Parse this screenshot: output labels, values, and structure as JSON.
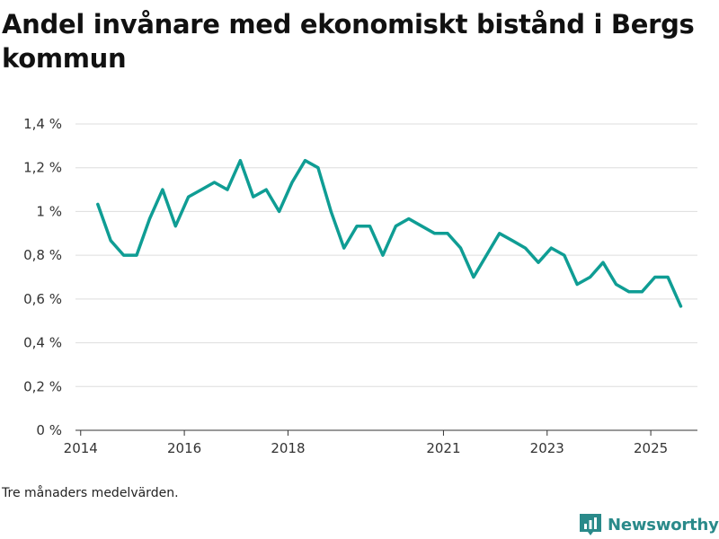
{
  "chart_data": {
    "type": "line",
    "title": "Andel invånare med ekonomiskt bistånd i Bergs kommun",
    "xlabel": "",
    "ylabel": "",
    "ylim": [
      0,
      1.4
    ],
    "yticks": [
      0,
      0.2,
      0.4,
      0.6,
      0.8,
      1,
      1.2,
      1.4
    ],
    "ytick_labels": [
      "0 %",
      "0,2 %",
      "0,4 %",
      "0,6 %",
      "0,8 %",
      "1 %",
      "1,2 %",
      "1,4 %"
    ],
    "xlim": [
      2013.9,
      2025.9
    ],
    "xticks": [
      2014,
      2016,
      2018,
      2021,
      2023,
      2025
    ],
    "xtick_labels": [
      "2014",
      "2016",
      "2018",
      "2021",
      "2023",
      "2025"
    ],
    "line_color": "#0f9d94",
    "series": [
      {
        "name": "Andel invånare med ekonomiskt bistånd",
        "x": [
          2014.33,
          2014.58,
          2014.83,
          2015.08,
          2015.33,
          2015.58,
          2015.83,
          2016.08,
          2016.33,
          2016.58,
          2016.83,
          2017.08,
          2017.33,
          2017.58,
          2017.83,
          2018.08,
          2018.33,
          2018.58,
          2018.83,
          2019.08,
          2019.33,
          2019.58,
          2019.83,
          2020.08,
          2020.33,
          2020.58,
          2020.83,
          2021.08,
          2021.33,
          2021.58,
          2021.83,
          2022.08,
          2022.33,
          2022.58,
          2022.83,
          2023.08,
          2023.33,
          2023.58,
          2023.83,
          2024.08,
          2024.33,
          2024.58,
          2024.83,
          2025.08,
          2025.33,
          2025.58
        ],
        "values": [
          1.033,
          0.867,
          0.8,
          0.8,
          0.967,
          1.1,
          0.933,
          1.067,
          1.1,
          1.133,
          1.1,
          1.233,
          1.067,
          1.1,
          1.0,
          1.133,
          1.233,
          1.2,
          1.0,
          0.833,
          0.933,
          0.933,
          0.8,
          0.933,
          0.967,
          0.933,
          0.9,
          0.9,
          0.833,
          0.7,
          0.8,
          0.9,
          0.867,
          0.833,
          0.767,
          0.833,
          0.8,
          0.667,
          0.7,
          0.767,
          0.667,
          0.633,
          0.633,
          0.7,
          0.7,
          0.567
        ]
      }
    ]
  },
  "footnote": "Tre månaders medelvärden.",
  "brand": {
    "name": "Newsworthy",
    "color": "#2a8a8a",
    "icon": "newsworthy-logo-icon"
  }
}
